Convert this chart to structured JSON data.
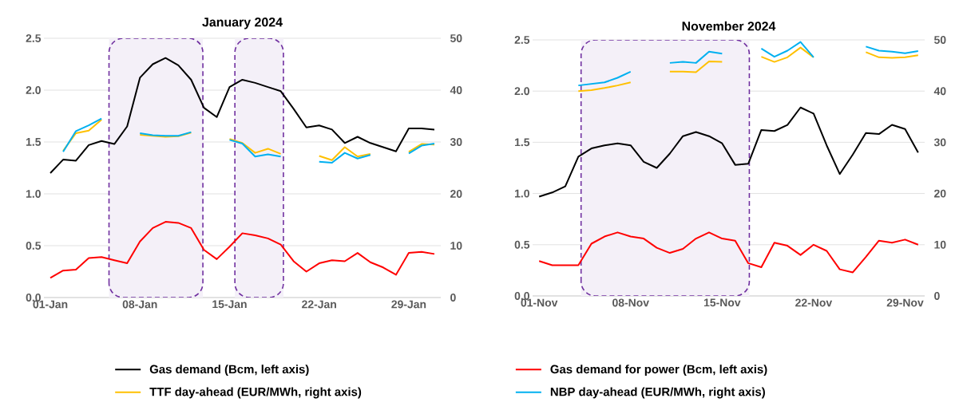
{
  "chart_data": [
    {
      "type": "line",
      "title": "January 2024",
      "x": [
        "2024-01-01",
        "2024-01-02",
        "2024-01-03",
        "2024-01-04",
        "2024-01-05",
        "2024-01-06",
        "2024-01-07",
        "2024-01-08",
        "2024-01-09",
        "2024-01-10",
        "2024-01-11",
        "2024-01-12",
        "2024-01-13",
        "2024-01-14",
        "2024-01-15",
        "2024-01-16",
        "2024-01-17",
        "2024-01-18",
        "2024-01-19",
        "2024-01-20",
        "2024-01-21",
        "2024-01-22",
        "2024-01-23",
        "2024-01-24",
        "2024-01-25",
        "2024-01-26",
        "2024-01-27",
        "2024-01-28",
        "2024-01-29",
        "2024-01-30",
        "2024-01-31"
      ],
      "xlim": [
        "2023-12-31T12:00",
        "2024-01-31T12:00"
      ],
      "xticks": [
        {
          "value": "2024-01-01",
          "label": "01-Jan"
        },
        {
          "value": "2024-01-08",
          "label": "08-Jan"
        },
        {
          "value": "2024-01-15",
          "label": "15-Jan"
        },
        {
          "value": "2024-01-22",
          "label": "22-Jan"
        },
        {
          "value": "2024-01-29",
          "label": "29-Jan"
        }
      ],
      "ylim": [
        0,
        2.5
      ],
      "yticks": [
        {
          "value": 0,
          "label": "0.0"
        },
        0.5,
        {
          "value": 1,
          "label": "1.0"
        },
        1.5,
        {
          "value": 2,
          "label": "2.0"
        },
        2.5
      ],
      "y2lim": [
        0,
        50
      ],
      "y2ticks": [
        0,
        10,
        20,
        30,
        40,
        50
      ],
      "grid": "y",
      "legend": "bottom",
      "bands": [
        {
          "axis": "x",
          "from": "2024-01-05T14:00",
          "to": "2024-01-12T22:00"
        },
        {
          "axis": "x",
          "from": "2024-01-15T10:00",
          "to": "2024-01-19T05:00"
        }
      ],
      "series": [
        {
          "name": "Gas demand (Bcm, left axis)",
          "color": "#000000",
          "values": [
            1.2,
            1.33,
            1.32,
            1.47,
            1.51,
            1.48,
            1.65,
            2.12,
            2.25,
            2.31,
            2.24,
            2.1,
            1.83,
            1.74,
            2.03,
            2.1,
            2.07,
            2.03,
            1.99,
            1.82,
            1.64,
            1.66,
            1.62,
            1.49,
            1.55,
            1.49,
            1.45,
            1.41,
            1.63,
            1.63,
            1.62
          ]
        },
        {
          "name": "Gas demand for power (Bcm, left axis)",
          "color": "#ff0000",
          "values": [
            0.19,
            0.26,
            0.27,
            0.38,
            0.39,
            0.36,
            0.33,
            0.54,
            0.67,
            0.73,
            0.72,
            0.67,
            0.46,
            0.37,
            0.49,
            0.62,
            0.6,
            0.57,
            0.51,
            0.35,
            0.25,
            0.33,
            0.36,
            0.35,
            0.43,
            0.34,
            0.29,
            0.22,
            0.43,
            0.44,
            0.42
          ]
        },
        {
          "name": "TTF day-ahead (EUR/MWh, right axis)",
          "color": "#ffc000",
          "axis": "y2",
          "values": [
            null,
            28.3,
            31.7,
            32.2,
            34.3,
            null,
            null,
            31.4,
            31.2,
            31.0,
            31.1,
            31.8,
            null,
            null,
            30.6,
            29.8,
            27.9,
            28.7,
            27.7,
            null,
            null,
            27.3,
            26.5,
            29.0,
            27.2,
            27.7,
            null,
            null,
            28.1,
            29.6,
            29.5
          ]
        },
        {
          "name": "NBP day-ahead (EUR/MWh, right axis)",
          "color": "#00b0f0",
          "axis": "y2",
          "values": [
            null,
            28.1,
            32.1,
            33.2,
            34.5,
            null,
            null,
            31.7,
            31.3,
            31.2,
            31.2,
            31.9,
            null,
            null,
            30.4,
            29.7,
            27.2,
            27.6,
            27.2,
            null,
            null,
            26.2,
            26.0,
            27.9,
            26.8,
            27.5,
            null,
            null,
            27.8,
            29.3,
            29.7
          ]
        }
      ]
    },
    {
      "type": "line",
      "title": "November 2024",
      "x": [
        "2024-11-01",
        "2024-11-02",
        "2024-11-03",
        "2024-11-04",
        "2024-11-05",
        "2024-11-06",
        "2024-11-07",
        "2024-11-08",
        "2024-11-09",
        "2024-11-10",
        "2024-11-11",
        "2024-11-12",
        "2024-11-13",
        "2024-11-14",
        "2024-11-15",
        "2024-11-16",
        "2024-11-17",
        "2024-11-18",
        "2024-11-19",
        "2024-11-20",
        "2024-11-21",
        "2024-11-22",
        "2024-11-23",
        "2024-11-24",
        "2024-11-25",
        "2024-11-26",
        "2024-11-27",
        "2024-11-28",
        "2024-11-29",
        "2024-11-30"
      ],
      "xlim": [
        "2024-10-31T12:00",
        "2024-11-30T12:00"
      ],
      "xticks": [
        {
          "value": "2024-11-01",
          "label": "01-Nov"
        },
        {
          "value": "2024-11-08",
          "label": "08-Nov"
        },
        {
          "value": "2024-11-15",
          "label": "15-Nov"
        },
        {
          "value": "2024-11-22",
          "label": "22-Nov"
        },
        {
          "value": "2024-11-29",
          "label": "29-Nov"
        }
      ],
      "ylim": [
        0,
        2.5
      ],
      "yticks": [
        {
          "value": 0,
          "label": "0.0"
        },
        0.5,
        {
          "value": 1,
          "label": "1.0"
        },
        1.5,
        {
          "value": 2,
          "label": "2.0"
        },
        2.5
      ],
      "y2lim": [
        0,
        50
      ],
      "y2ticks": [
        0,
        10,
        20,
        30,
        40,
        50
      ],
      "grid": "y",
      "bands": [
        {
          "axis": "x",
          "from": "2024-11-04T05:00",
          "to": "2024-11-17T02:00"
        }
      ],
      "series": [
        {
          "color": "#000000",
          "values": [
            0.97,
            1.01,
            1.07,
            1.36,
            1.44,
            1.47,
            1.49,
            1.47,
            1.31,
            1.25,
            1.39,
            1.56,
            1.6,
            1.56,
            1.49,
            1.28,
            1.29,
            1.62,
            1.61,
            1.67,
            1.84,
            1.78,
            1.47,
            1.19,
            1.38,
            1.59,
            1.58,
            1.67,
            1.63,
            1.4
          ]
        },
        {
          "color": "#ff0000",
          "values": [
            0.34,
            0.3,
            0.3,
            0.3,
            0.51,
            0.58,
            0.62,
            0.58,
            0.56,
            0.47,
            0.42,
            0.46,
            0.56,
            0.62,
            0.56,
            0.54,
            0.32,
            0.28,
            0.52,
            0.49,
            0.4,
            0.5,
            0.44,
            0.26,
            0.23,
            0.38,
            0.54,
            0.52,
            0.55,
            0.5
          ]
        },
        {
          "color": "#ffc000",
          "axis": "y2",
          "values": [
            null,
            null,
            null,
            40.0,
            40.2,
            40.6,
            41.1,
            41.7,
            null,
            null,
            43.8,
            43.8,
            43.7,
            45.8,
            45.7,
            null,
            null,
            46.7,
            45.7,
            46.6,
            48.5,
            46.6,
            null,
            null,
            null,
            47.6,
            46.6,
            46.5,
            46.6,
            47.0
          ]
        },
        {
          "color": "#00b0f0",
          "axis": "y2",
          "values": [
            null,
            null,
            null,
            41.1,
            41.4,
            41.7,
            42.6,
            43.8,
            null,
            null,
            45.5,
            45.7,
            45.5,
            47.7,
            47.3,
            null,
            null,
            48.3,
            46.7,
            47.9,
            49.6,
            46.6,
            null,
            null,
            null,
            48.7,
            47.9,
            47.7,
            47.4,
            47.8
          ]
        }
      ]
    }
  ]
}
